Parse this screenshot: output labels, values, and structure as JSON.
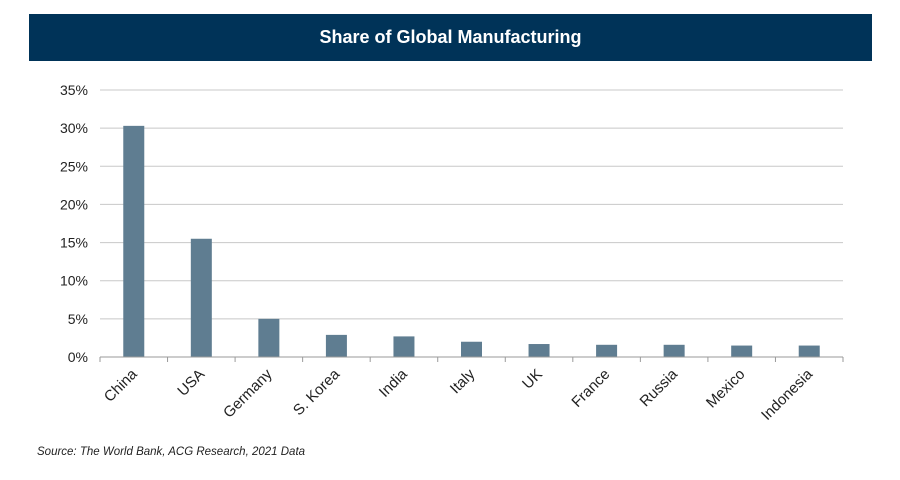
{
  "chart_data": {
    "type": "bar",
    "title": "Share of Global Manufacturing",
    "categories": [
      "China",
      "USA",
      "Germany",
      "S. Korea",
      "India",
      "Italy",
      "UK",
      "France",
      "Russia",
      "Mexico",
      "Indonesia"
    ],
    "values": [
      30.3,
      15.5,
      5.0,
      2.9,
      2.7,
      2.0,
      1.7,
      1.6,
      1.6,
      1.5,
      1.5
    ],
    "ylim": [
      0,
      35
    ],
    "yticks": [
      0,
      5,
      10,
      15,
      20,
      25,
      30,
      35
    ],
    "ytick_labels": [
      "0%",
      "5%",
      "10%",
      "15%",
      "20%",
      "25%",
      "30%",
      "35%"
    ],
    "xlabel": "",
    "ylabel": "",
    "grid": true,
    "legend": "none",
    "bar_color": "#5f7d91",
    "source": "Source: The World Bank, ACG Research, 2021 Data"
  },
  "colors": {
    "title_bg": "#003358",
    "gridline": "#c8c8c8",
    "text": "#222222"
  }
}
